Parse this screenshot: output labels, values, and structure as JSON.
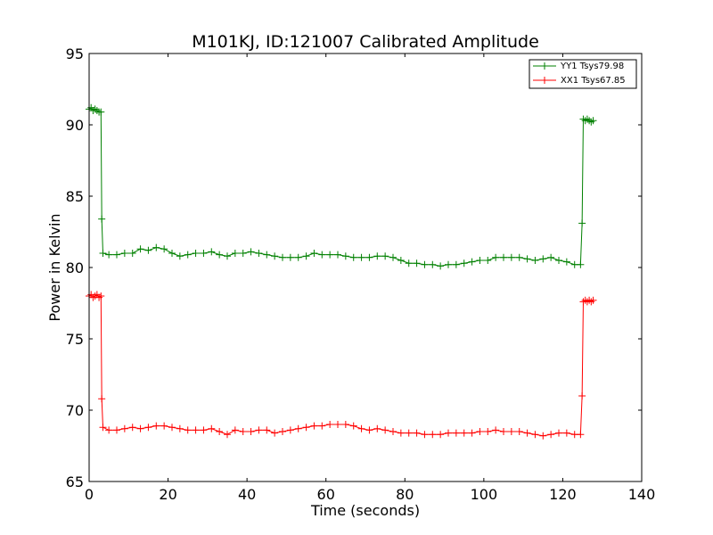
{
  "chart_data": {
    "type": "line",
    "title": "M101KJ, ID:121007 Calibrated Amplitude",
    "xlabel": "Time (seconds)",
    "ylabel": "Power in Kelvin",
    "xlim": [
      0,
      140
    ],
    "ylim": [
      65,
      95
    ],
    "xticks": [
      0,
      20,
      40,
      60,
      80,
      100,
      120,
      140
    ],
    "yticks": [
      65,
      70,
      75,
      80,
      85,
      90,
      95
    ],
    "grid": false,
    "legend_position": "top-right",
    "marker": "+",
    "series": [
      {
        "name": "YY1 Tsys79.98",
        "color": "#008000",
        "points": [
          [
            0.0,
            91.1
          ],
          [
            0.5,
            91.2
          ],
          [
            1.0,
            91.0
          ],
          [
            1.5,
            91.1
          ],
          [
            2.0,
            91.0
          ],
          [
            2.5,
            90.9
          ],
          [
            3.0,
            90.9
          ],
          [
            3.2,
            83.4
          ],
          [
            3.5,
            81.0
          ],
          [
            5,
            80.9
          ],
          [
            7,
            80.9
          ],
          [
            9,
            81.0
          ],
          [
            11,
            81.0
          ],
          [
            13,
            81.3
          ],
          [
            15,
            81.2
          ],
          [
            17,
            81.4
          ],
          [
            19,
            81.3
          ],
          [
            21,
            81.0
          ],
          [
            23,
            80.8
          ],
          [
            25,
            80.9
          ],
          [
            27,
            81.0
          ],
          [
            29,
            81.0
          ],
          [
            31,
            81.1
          ],
          [
            33,
            80.9
          ],
          [
            35,
            80.8
          ],
          [
            37,
            81.0
          ],
          [
            39,
            81.0
          ],
          [
            41,
            81.1
          ],
          [
            43,
            81.0
          ],
          [
            45,
            80.9
          ],
          [
            47,
            80.8
          ],
          [
            49,
            80.7
          ],
          [
            51,
            80.7
          ],
          [
            53,
            80.7
          ],
          [
            55,
            80.8
          ],
          [
            57,
            81.0
          ],
          [
            59,
            80.9
          ],
          [
            61,
            80.9
          ],
          [
            63,
            80.9
          ],
          [
            65,
            80.8
          ],
          [
            67,
            80.7
          ],
          [
            69,
            80.7
          ],
          [
            71,
            80.7
          ],
          [
            73,
            80.8
          ],
          [
            75,
            80.8
          ],
          [
            77,
            80.7
          ],
          [
            79,
            80.5
          ],
          [
            81,
            80.3
          ],
          [
            83,
            80.3
          ],
          [
            85,
            80.2
          ],
          [
            87,
            80.2
          ],
          [
            89,
            80.1
          ],
          [
            91,
            80.2
          ],
          [
            93,
            80.2
          ],
          [
            95,
            80.3
          ],
          [
            97,
            80.4
          ],
          [
            99,
            80.5
          ],
          [
            101,
            80.5
          ],
          [
            103,
            80.7
          ],
          [
            105,
            80.7
          ],
          [
            107,
            80.7
          ],
          [
            109,
            80.7
          ],
          [
            111,
            80.6
          ],
          [
            113,
            80.5
          ],
          [
            115,
            80.6
          ],
          [
            117,
            80.7
          ],
          [
            119,
            80.5
          ],
          [
            121,
            80.4
          ],
          [
            123,
            80.2
          ],
          [
            124.5,
            80.2
          ],
          [
            124.9,
            83.1
          ],
          [
            125.2,
            90.4
          ],
          [
            125.7,
            90.3
          ],
          [
            126.2,
            90.4
          ],
          [
            126.7,
            90.3
          ],
          [
            127.2,
            90.2
          ],
          [
            127.7,
            90.3
          ]
        ]
      },
      {
        "name": "XX1 Tsys67.85",
        "color": "#ff0000",
        "points": [
          [
            0.0,
            78.0
          ],
          [
            0.5,
            78.1
          ],
          [
            1.0,
            77.9
          ],
          [
            1.5,
            78.0
          ],
          [
            2.0,
            78.1
          ],
          [
            2.5,
            77.9
          ],
          [
            3.0,
            78.0
          ],
          [
            3.2,
            70.8
          ],
          [
            3.5,
            68.8
          ],
          [
            5,
            68.6
          ],
          [
            7,
            68.6
          ],
          [
            9,
            68.7
          ],
          [
            11,
            68.8
          ],
          [
            13,
            68.7
          ],
          [
            15,
            68.8
          ],
          [
            17,
            68.9
          ],
          [
            19,
            68.9
          ],
          [
            21,
            68.8
          ],
          [
            23,
            68.7
          ],
          [
            25,
            68.6
          ],
          [
            27,
            68.6
          ],
          [
            29,
            68.6
          ],
          [
            31,
            68.7
          ],
          [
            33,
            68.5
          ],
          [
            35,
            68.3
          ],
          [
            37,
            68.6
          ],
          [
            39,
            68.5
          ],
          [
            41,
            68.5
          ],
          [
            43,
            68.6
          ],
          [
            45,
            68.6
          ],
          [
            47,
            68.4
          ],
          [
            49,
            68.5
          ],
          [
            51,
            68.6
          ],
          [
            53,
            68.7
          ],
          [
            55,
            68.8
          ],
          [
            57,
            68.9
          ],
          [
            59,
            68.9
          ],
          [
            61,
            69.0
          ],
          [
            63,
            69.0
          ],
          [
            65,
            69.0
          ],
          [
            67,
            68.9
          ],
          [
            69,
            68.7
          ],
          [
            71,
            68.6
          ],
          [
            73,
            68.7
          ],
          [
            75,
            68.6
          ],
          [
            77,
            68.5
          ],
          [
            79,
            68.4
          ],
          [
            81,
            68.4
          ],
          [
            83,
            68.4
          ],
          [
            85,
            68.3
          ],
          [
            87,
            68.3
          ],
          [
            89,
            68.3
          ],
          [
            91,
            68.4
          ],
          [
            93,
            68.4
          ],
          [
            95,
            68.4
          ],
          [
            97,
            68.4
          ],
          [
            99,
            68.5
          ],
          [
            101,
            68.5
          ],
          [
            103,
            68.6
          ],
          [
            105,
            68.5
          ],
          [
            107,
            68.5
          ],
          [
            109,
            68.5
          ],
          [
            111,
            68.4
          ],
          [
            113,
            68.3
          ],
          [
            115,
            68.2
          ],
          [
            117,
            68.3
          ],
          [
            119,
            68.4
          ],
          [
            121,
            68.4
          ],
          [
            123,
            68.3
          ],
          [
            124.5,
            68.3
          ],
          [
            124.9,
            71.0
          ],
          [
            125.2,
            77.6
          ],
          [
            125.7,
            77.7
          ],
          [
            126.2,
            77.6
          ],
          [
            126.7,
            77.7
          ],
          [
            127.2,
            77.6
          ],
          [
            127.7,
            77.7
          ]
        ]
      }
    ]
  }
}
